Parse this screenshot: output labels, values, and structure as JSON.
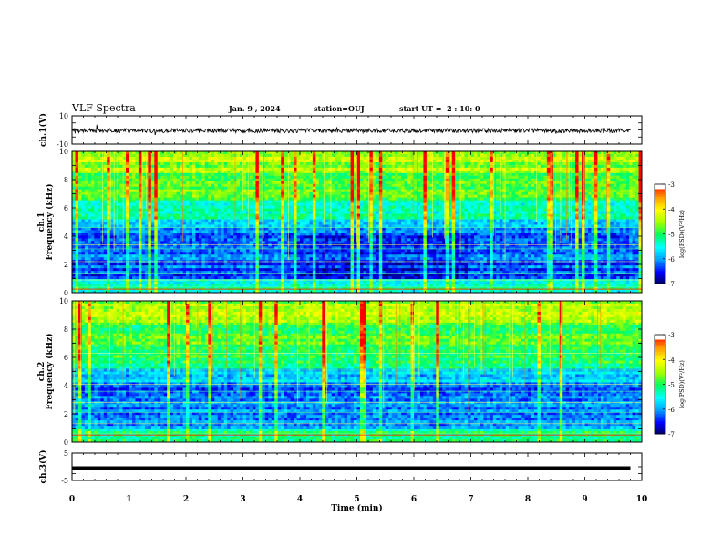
{
  "header": {
    "title": "VLF Spectra",
    "date": "Jan. 9 , 2024",
    "station": "station=OUJ",
    "start": "start UT =  2 : 10: 0"
  },
  "colorbar": {
    "label": "log(PSD)(V²/Hz)",
    "ticks": [
      "-3",
      "-4",
      "-5",
      "-6",
      "-7"
    ],
    "colors": [
      "#00005a",
      "#0000ff",
      "#00a0ff",
      "#00ffff",
      "#00ff60",
      "#a0ff00",
      "#ffff00",
      "#ffa000",
      "#ff0000",
      "#ffffff"
    ]
  },
  "chart_data": [
    {
      "type": "line",
      "name": "ch.1 waveform",
      "ylabel": "ch.1(V)",
      "ylim": [
        -10,
        10
      ],
      "y_ticks": [
        "10",
        "-10"
      ],
      "xlim": [
        0,
        10
      ],
      "grid": false,
      "approx_level_V": -0.5,
      "approx_noise_amplitude_V": 1.5
    },
    {
      "type": "heatmap",
      "name": "ch.1 spectrogram",
      "ylabel": "ch.1 Frequency (kHz)",
      "ylim": [
        0,
        10
      ],
      "y_ticks": [
        "0",
        "2",
        "4",
        "6",
        "8",
        "10"
      ],
      "xlim": [
        0,
        10
      ],
      "color_scale": [
        -7,
        -3
      ],
      "grid": false
    },
    {
      "type": "heatmap",
      "name": "ch.2 spectrogram",
      "ylabel": "ch.2 Frequency (kHz)",
      "ylim": [
        0,
        10
      ],
      "y_ticks": [
        "0",
        "2",
        "4",
        "6",
        "8",
        "10"
      ],
      "xlim": [
        0,
        10
      ],
      "color_scale": [
        -7,
        -3
      ],
      "grid": false
    },
    {
      "type": "line",
      "name": "ch.3 waveform",
      "ylabel": "ch.3(V)",
      "ylim": [
        -5,
        5
      ],
      "y_ticks": [
        "5",
        "-5"
      ],
      "xlim": [
        0,
        10
      ],
      "grid": false,
      "approx_level_V": -0.5
    }
  ],
  "xaxis": {
    "label": "Time (min)",
    "ticks": [
      "0",
      "1",
      "2",
      "3",
      "4",
      "5",
      "6",
      "7",
      "8",
      "9",
      "10"
    ]
  }
}
